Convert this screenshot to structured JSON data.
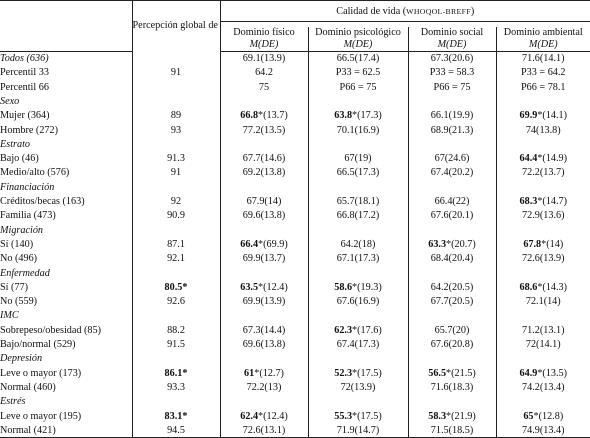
{
  "header": {
    "perception": "Percepción global de la salud (%)",
    "quality_title": "Calidad de vida",
    "quality_instrument": "WHOQOL-BREFF",
    "domains": [
      {
        "name": "Dominio físico",
        "stat": "M(DE)"
      },
      {
        "name": "Dominio psicológico",
        "stat": "M(DE)"
      },
      {
        "name": "Dominio social",
        "stat": "M(DE)"
      },
      {
        "name": "Dominio ambiental",
        "stat": "M(DE)"
      }
    ]
  },
  "rows": [
    {
      "label": "Todos (636)",
      "cat": true,
      "pct": "",
      "pct_b": false,
      "cells": [
        {
          "bold": "",
          "rest": "69.1(13.9)"
        },
        {
          "bold": "",
          "rest": "66.5(17.4)"
        },
        {
          "bold": "",
          "rest": "67.3(20.6)"
        },
        {
          "bold": "",
          "rest": "71.6(14.1)"
        }
      ]
    },
    {
      "label": "Percentil 33",
      "cat": false,
      "pct": "91",
      "pct_b": false,
      "cells": [
        {
          "bold": "",
          "rest": "64.2"
        },
        {
          "bold": "",
          "rest": "P33 = 62.5"
        },
        {
          "bold": "",
          "rest": "P33 = 58.3"
        },
        {
          "bold": "",
          "rest": "P33 = 64.2"
        }
      ]
    },
    {
      "label": "Percentil 66",
      "cat": false,
      "pct": "",
      "pct_b": false,
      "cells": [
        {
          "bold": "",
          "rest": "75"
        },
        {
          "bold": "",
          "rest": "P66 = 75"
        },
        {
          "bold": "",
          "rest": "P66 = 75"
        },
        {
          "bold": "",
          "rest": "P66 = 78.1"
        }
      ]
    },
    {
      "label": "Sexo",
      "cat": true,
      "pct": "",
      "pct_b": false,
      "cells": [
        {
          "bold": "",
          "rest": ""
        },
        {
          "bold": "",
          "rest": ""
        },
        {
          "bold": "",
          "rest": ""
        },
        {
          "bold": "",
          "rest": ""
        }
      ]
    },
    {
      "label": "Mujer (364)",
      "cat": false,
      "pct": "89",
      "pct_b": false,
      "cells": [
        {
          "bold": "66.8",
          "rest": "*(13.7)"
        },
        {
          "bold": "63.8",
          "rest": "*(17.3)"
        },
        {
          "bold": "",
          "rest": "66.1(19.9)"
        },
        {
          "bold": "69.9",
          "rest": "*(14.1)"
        }
      ]
    },
    {
      "label": "Hombre (272)",
      "cat": false,
      "pct": "93",
      "pct_b": false,
      "cells": [
        {
          "bold": "",
          "rest": "77.2(13.5)"
        },
        {
          "bold": "",
          "rest": "70.1(16.9)"
        },
        {
          "bold": "",
          "rest": "68.9(21.3)"
        },
        {
          "bold": "",
          "rest": "74(13.8)"
        }
      ]
    },
    {
      "label": "Estrato",
      "cat": true,
      "pct": "",
      "pct_b": false,
      "cells": [
        {
          "bold": "",
          "rest": ""
        },
        {
          "bold": "",
          "rest": ""
        },
        {
          "bold": "",
          "rest": ""
        },
        {
          "bold": "",
          "rest": ""
        }
      ]
    },
    {
      "label": "Bajo (46)",
      "cat": false,
      "pct": "91.3",
      "pct_b": false,
      "cells": [
        {
          "bold": "",
          "rest": "67.7(14.6)"
        },
        {
          "bold": "",
          "rest": "67(19)"
        },
        {
          "bold": "",
          "rest": "67(24.6)"
        },
        {
          "bold": "64.4",
          "rest": "*(14.9)"
        }
      ]
    },
    {
      "label": "Medio/alto (576)",
      "cat": false,
      "pct": "91",
      "pct_b": false,
      "cells": [
        {
          "bold": "",
          "rest": "69.2(13.8)"
        },
        {
          "bold": "",
          "rest": "66.5(17.3)"
        },
        {
          "bold": "",
          "rest": "67.4(20.2)"
        },
        {
          "bold": "",
          "rest": "72.2(13.7)"
        }
      ]
    },
    {
      "label": "Financiación",
      "cat": true,
      "pct": "",
      "pct_b": false,
      "cells": [
        {
          "bold": "",
          "rest": ""
        },
        {
          "bold": "",
          "rest": ""
        },
        {
          "bold": "",
          "rest": ""
        },
        {
          "bold": "",
          "rest": ""
        }
      ]
    },
    {
      "label": "Créditos/becas (163)",
      "cat": false,
      "pct": "92",
      "pct_b": false,
      "cells": [
        {
          "bold": "",
          "rest": "67.9(14)"
        },
        {
          "bold": "",
          "rest": "65.7(18.1)"
        },
        {
          "bold": "",
          "rest": "66.4(22)"
        },
        {
          "bold": "68.3",
          "rest": "*(14.7)"
        }
      ]
    },
    {
      "label": "Familia (473)",
      "cat": false,
      "pct": "90.9",
      "pct_b": false,
      "cells": [
        {
          "bold": "",
          "rest": "69.6(13.8)"
        },
        {
          "bold": "",
          "rest": "66.8(17.2)"
        },
        {
          "bold": "",
          "rest": "67.6(20.1)"
        },
        {
          "bold": "",
          "rest": "72.9(13.6)"
        }
      ]
    },
    {
      "label": "Migración",
      "cat": true,
      "pct": "",
      "pct_b": false,
      "cells": [
        {
          "bold": "",
          "rest": ""
        },
        {
          "bold": "",
          "rest": ""
        },
        {
          "bold": "",
          "rest": ""
        },
        {
          "bold": "",
          "rest": ""
        }
      ]
    },
    {
      "label": "Sí (140)",
      "cat": false,
      "pct": "87.1",
      "pct_b": false,
      "cells": [
        {
          "bold": "66.4",
          "rest": "*(69.9)"
        },
        {
          "bold": "",
          "rest": "64.2(18)"
        },
        {
          "bold": "63.3",
          "rest": "*(20.7)"
        },
        {
          "bold": "67.8",
          "rest": "*(14)"
        }
      ]
    },
    {
      "label": "No (496)",
      "cat": false,
      "pct": "92.1",
      "pct_b": false,
      "cells": [
        {
          "bold": "",
          "rest": "69.9(13.7)"
        },
        {
          "bold": "",
          "rest": "67.1(17.3)"
        },
        {
          "bold": "",
          "rest": "68.4(20.4)"
        },
        {
          "bold": "",
          "rest": "72.6(13.9)"
        }
      ]
    },
    {
      "label": "Enfermedad",
      "cat": true,
      "pct": "",
      "pct_b": false,
      "cells": [
        {
          "bold": "",
          "rest": ""
        },
        {
          "bold": "",
          "rest": ""
        },
        {
          "bold": "",
          "rest": ""
        },
        {
          "bold": "",
          "rest": ""
        }
      ]
    },
    {
      "label": "Sí (77)",
      "cat": false,
      "pct": "80.5*",
      "pct_b": true,
      "cells": [
        {
          "bold": "63.5",
          "rest": "*(12.4)"
        },
        {
          "bold": "58.6",
          "rest": "*(19.3)"
        },
        {
          "bold": "",
          "rest": "64.2(20.5)"
        },
        {
          "bold": "68.6",
          "rest": "*(14.3)"
        }
      ]
    },
    {
      "label": "No (559)",
      "cat": false,
      "pct": "92.6",
      "pct_b": false,
      "cells": [
        {
          "bold": "",
          "rest": "69.9(13.9)"
        },
        {
          "bold": "",
          "rest": "67.6(16.9)"
        },
        {
          "bold": "",
          "rest": "67.7(20.5)"
        },
        {
          "bold": "",
          "rest": "72.1(14)"
        }
      ]
    },
    {
      "label": "IMC",
      "cat": true,
      "pct": "",
      "pct_b": false,
      "cells": [
        {
          "bold": "",
          "rest": ""
        },
        {
          "bold": "",
          "rest": ""
        },
        {
          "bold": "",
          "rest": ""
        },
        {
          "bold": "",
          "rest": ""
        }
      ]
    },
    {
      "label": "Sobrepeso/obesidad (85)",
      "cat": false,
      "pct": "88.2",
      "pct_b": false,
      "cells": [
        {
          "bold": "",
          "rest": "67.3(14.4)"
        },
        {
          "bold": "62.3",
          "rest": "*(17.6)"
        },
        {
          "bold": "",
          "rest": "65.7(20)"
        },
        {
          "bold": "",
          "rest": "71.2(13.1)"
        }
      ]
    },
    {
      "label": "Bajo/normal (529)",
      "cat": false,
      "pct": "91.5",
      "pct_b": false,
      "cells": [
        {
          "bold": "",
          "rest": "69.6(13.8)"
        },
        {
          "bold": "",
          "rest": "67.4(17.3)"
        },
        {
          "bold": "",
          "rest": "67.6(20.8)"
        },
        {
          "bold": "",
          "rest": "72(14.1)"
        }
      ]
    },
    {
      "label": "Depresión",
      "cat": true,
      "pct": "",
      "pct_b": false,
      "cells": [
        {
          "bold": "",
          "rest": ""
        },
        {
          "bold": "",
          "rest": ""
        },
        {
          "bold": "",
          "rest": ""
        },
        {
          "bold": "",
          "rest": ""
        }
      ]
    },
    {
      "label": "Leve o mayor (173)",
      "cat": false,
      "pct": "86.1*",
      "pct_b": true,
      "cells": [
        {
          "bold": "61",
          "rest": "*(12.7)"
        },
        {
          "bold": "52.3",
          "rest": "*(17.5)"
        },
        {
          "bold": "56.5",
          "rest": "*(21.5)"
        },
        {
          "bold": "64.9",
          "rest": "*(13.5)"
        }
      ]
    },
    {
      "label": "Normal (460)",
      "cat": false,
      "pct": "93.3",
      "pct_b": false,
      "cells": [
        {
          "bold": "",
          "rest": "72.2(13)"
        },
        {
          "bold": "",
          "rest": "72(13.9)"
        },
        {
          "bold": "",
          "rest": "71.6(18.3)"
        },
        {
          "bold": "",
          "rest": "74.2(13.4)"
        }
      ]
    },
    {
      "label": "Estrés",
      "cat": true,
      "pct": "",
      "pct_b": false,
      "cells": [
        {
          "bold": "",
          "rest": ""
        },
        {
          "bold": "",
          "rest": ""
        },
        {
          "bold": "",
          "rest": ""
        },
        {
          "bold": "",
          "rest": ""
        }
      ]
    },
    {
      "label": "Leve o mayor (195)",
      "cat": false,
      "pct": "83.1*",
      "pct_b": true,
      "cells": [
        {
          "bold": "62.4",
          "rest": "*(12.4)"
        },
        {
          "bold": "55.3",
          "rest": "*(17.5)"
        },
        {
          "bold": "58.3",
          "rest": "*(21.9)"
        },
        {
          "bold": "65",
          "rest": "*(12.8)"
        }
      ]
    },
    {
      "label": "Normal (421)",
      "cat": false,
      "pct": "94.5",
      "pct_b": false,
      "cells": [
        {
          "bold": "",
          "rest": "72.6(13.1)"
        },
        {
          "bold": "",
          "rest": "71.9(14.7)"
        },
        {
          "bold": "",
          "rest": "71.5(18.5)"
        },
        {
          "bold": "",
          "rest": "74.9(13.4)"
        }
      ]
    }
  ]
}
